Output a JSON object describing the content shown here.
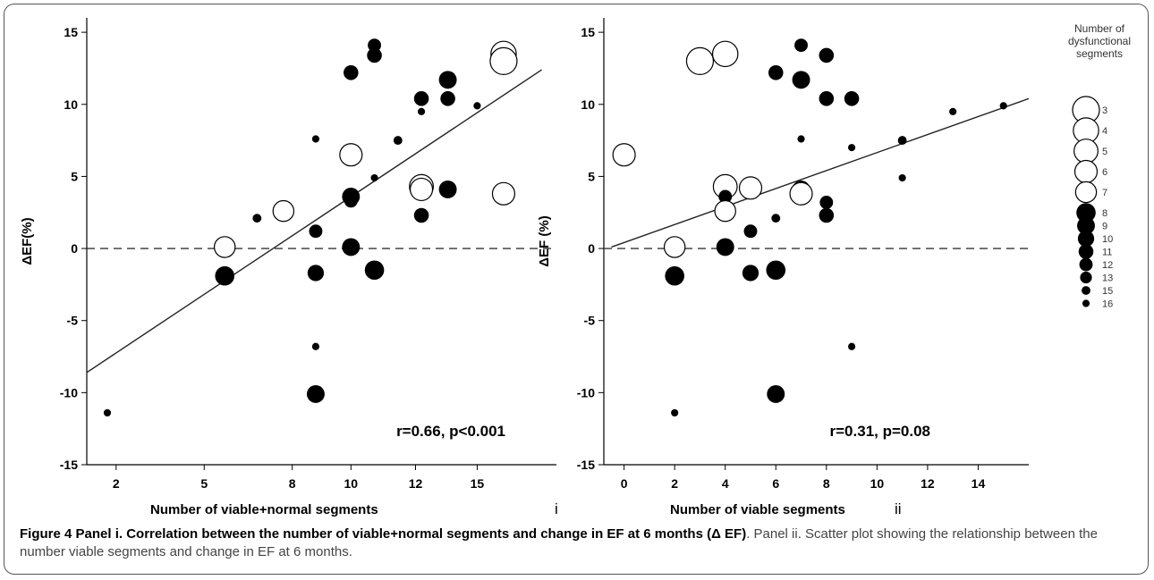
{
  "chart_data": [
    {
      "type": "scatter",
      "panel_label": "i",
      "xlabel": "Number of viable+normal segments",
      "ylabel": "ΔEF(%)",
      "annotation": "r=0.66, p<0.001",
      "xlim": [
        1,
        17
      ],
      "ylim": [
        -15,
        16
      ],
      "xtick_values": [
        2,
        4,
        6,
        8,
        10,
        12,
        14,
        16
      ],
      "xtick_labels": [
        "2",
        "5",
        "8",
        "10",
        "12",
        "15"
      ],
      "xtick_positions": [
        2,
        5,
        8,
        10,
        12.2,
        14.3
      ],
      "yticks": [
        -15,
        -10,
        -5,
        0,
        5,
        10,
        15
      ],
      "reference_line_y": 0,
      "regression": {
        "x1": 1,
        "y1": -8.6,
        "x2": 16.5,
        "y2": 12.4
      },
      "points": [
        {
          "x": 1.7,
          "y": -11.4,
          "size": 16,
          "filled": true
        },
        {
          "x": 5.7,
          "y": 0.1,
          "size": 7,
          "filled": false
        },
        {
          "x": 5.7,
          "y": -1.9,
          "size": 8,
          "filled": true
        },
        {
          "x": 6.8,
          "y": 2.1,
          "size": 15,
          "filled": true
        },
        {
          "x": 7.7,
          "y": 2.6,
          "size": 7,
          "filled": false
        },
        {
          "x": 8.8,
          "y": 7.6,
          "size": 16,
          "filled": true
        },
        {
          "x": 8.8,
          "y": 1.2,
          "size": 12,
          "filled": true
        },
        {
          "x": 8.8,
          "y": -1.7,
          "size": 10,
          "filled": true
        },
        {
          "x": 8.8,
          "y": -6.8,
          "size": 16,
          "filled": true
        },
        {
          "x": 8.8,
          "y": -10.1,
          "size": 9,
          "filled": true
        },
        {
          "x": 10.0,
          "y": 12.2,
          "size": 11,
          "filled": true
        },
        {
          "x": 10.0,
          "y": 7.0,
          "size": 16,
          "filled": true
        },
        {
          "x": 10.0,
          "y": 6.5,
          "size": 6,
          "filled": false
        },
        {
          "x": 10.0,
          "y": 3.6,
          "size": 9,
          "filled": true
        },
        {
          "x": 10.0,
          "y": 3.3,
          "size": 12,
          "filled": true
        },
        {
          "x": 10.0,
          "y": 0.1,
          "size": 9,
          "filled": true
        },
        {
          "x": 10.8,
          "y": 14.1,
          "size": 12,
          "filled": true
        },
        {
          "x": 10.8,
          "y": 13.4,
          "size": 11,
          "filled": true
        },
        {
          "x": 10.8,
          "y": 4.9,
          "size": 16,
          "filled": true
        },
        {
          "x": 10.8,
          "y": -1.5,
          "size": 8,
          "filled": true
        },
        {
          "x": 11.6,
          "y": 7.5,
          "size": 15,
          "filled": true
        },
        {
          "x": 12.4,
          "y": 10.4,
          "size": 11,
          "filled": true
        },
        {
          "x": 12.4,
          "y": 9.5,
          "size": 16,
          "filled": true
        },
        {
          "x": 12.4,
          "y": 4.3,
          "size": 5,
          "filled": false
        },
        {
          "x": 12.4,
          "y": 4.1,
          "size": 6,
          "filled": false
        },
        {
          "x": 12.4,
          "y": 2.3,
          "size": 11,
          "filled": true
        },
        {
          "x": 13.3,
          "y": 11.7,
          "size": 9,
          "filled": true
        },
        {
          "x": 13.3,
          "y": 10.4,
          "size": 11,
          "filled": true
        },
        {
          "x": 13.3,
          "y": 4.1,
          "size": 9,
          "filled": true
        },
        {
          "x": 14.3,
          "y": 9.9,
          "size": 16,
          "filled": true
        },
        {
          "x": 15.2,
          "y": 13.5,
          "size": 4,
          "filled": false
        },
        {
          "x": 15.2,
          "y": 13.0,
          "size": 3,
          "filled": false
        },
        {
          "x": 15.2,
          "y": 3.8,
          "size": 6,
          "filled": false
        }
      ]
    },
    {
      "type": "scatter",
      "panel_label": "ii",
      "xlabel": "Number of viable segments",
      "ylabel": "ΔEF (%)",
      "annotation": "r=0.31, p=0.08",
      "xlim": [
        -0.8,
        16
      ],
      "ylim": [
        -15,
        16
      ],
      "xticks": [
        0,
        2,
        4,
        6,
        8,
        10,
        12,
        14
      ],
      "yticks": [
        -15,
        -10,
        -5,
        0,
        5,
        10,
        15
      ],
      "reference_line_y": 0,
      "regression": {
        "x1": -0.5,
        "y1": 0.1,
        "x2": 16,
        "y2": 10.4
      },
      "points": [
        {
          "x": 0,
          "y": 6.5,
          "size": 6,
          "filled": false
        },
        {
          "x": 2,
          "y": 0.1,
          "size": 7,
          "filled": false
        },
        {
          "x": 2,
          "y": -1.9,
          "size": 8,
          "filled": true
        },
        {
          "x": 2,
          "y": -11.4,
          "size": 16,
          "filled": true
        },
        {
          "x": 3,
          "y": 13.0,
          "size": 3,
          "filled": false
        },
        {
          "x": 4,
          "y": 13.5,
          "size": 4,
          "filled": false
        },
        {
          "x": 4,
          "y": 4.3,
          "size": 5,
          "filled": false
        },
        {
          "x": 4,
          "y": 3.6,
          "size": 12,
          "filled": true
        },
        {
          "x": 4,
          "y": 2.6,
          "size": 7,
          "filled": false
        },
        {
          "x": 4,
          "y": 0.1,
          "size": 9,
          "filled": true
        },
        {
          "x": 5,
          "y": 4.2,
          "size": 6,
          "filled": false
        },
        {
          "x": 5,
          "y": 1.2,
          "size": 12,
          "filled": true
        },
        {
          "x": 5,
          "y": -1.7,
          "size": 10,
          "filled": true
        },
        {
          "x": 6,
          "y": 12.2,
          "size": 11,
          "filled": true
        },
        {
          "x": 6,
          "y": 2.1,
          "size": 15,
          "filled": true
        },
        {
          "x": 6,
          "y": -1.5,
          "size": 8,
          "filled": true
        },
        {
          "x": 6,
          "y": -10.1,
          "size": 9,
          "filled": true
        },
        {
          "x": 7,
          "y": 14.1,
          "size": 12,
          "filled": true
        },
        {
          "x": 7,
          "y": 11.7,
          "size": 9,
          "filled": true
        },
        {
          "x": 7,
          "y": 7.6,
          "size": 16,
          "filled": true
        },
        {
          "x": 7,
          "y": 4.1,
          "size": 9,
          "filled": true
        },
        {
          "x": 7,
          "y": 3.8,
          "size": 6,
          "filled": false
        },
        {
          "x": 8,
          "y": 13.4,
          "size": 11,
          "filled": true
        },
        {
          "x": 8,
          "y": 10.4,
          "size": 11,
          "filled": true
        },
        {
          "x": 8,
          "y": 3.2,
          "size": 12,
          "filled": true
        },
        {
          "x": 8,
          "y": 2.3,
          "size": 11,
          "filled": true
        },
        {
          "x": 9,
          "y": 10.4,
          "size": 11,
          "filled": true
        },
        {
          "x": 9,
          "y": 7.0,
          "size": 16,
          "filled": true
        },
        {
          "x": 9,
          "y": -6.8,
          "size": 16,
          "filled": true
        },
        {
          "x": 11,
          "y": 7.5,
          "size": 15,
          "filled": true
        },
        {
          "x": 11,
          "y": 4.9,
          "size": 16,
          "filled": true
        },
        {
          "x": 13,
          "y": 9.5,
          "size": 16,
          "filled": true
        },
        {
          "x": 15,
          "y": 9.9,
          "size": 16,
          "filled": true
        }
      ]
    }
  ],
  "legend": {
    "title_lines": [
      "Number of",
      "dysfunctional",
      "segments"
    ],
    "items": [
      {
        "label": "3",
        "size": 3,
        "filled": false
      },
      {
        "label": "4",
        "size": 4,
        "filled": false
      },
      {
        "label": "5",
        "size": 5,
        "filled": false
      },
      {
        "label": "6",
        "size": 6,
        "filled": false
      },
      {
        "label": "7",
        "size": 7,
        "filled": false
      },
      {
        "label": "8",
        "size": 8,
        "filled": true
      },
      {
        "label": "9",
        "size": 9,
        "filled": true
      },
      {
        "label": "10",
        "size": 10,
        "filled": true
      },
      {
        "label": "11",
        "size": 11,
        "filled": true
      },
      {
        "label": "12",
        "size": 12,
        "filled": true
      },
      {
        "label": "13",
        "size": 13,
        "filled": true
      },
      {
        "label": "15",
        "size": 15,
        "filled": true
      },
      {
        "label": "16",
        "size": 16,
        "filled": true
      }
    ]
  },
  "caption": {
    "bold": "Figure 4 Panel i. Correlation between the number of viable+normal segments and change in EF at 6 months (Δ EF)",
    "rest": ". Panel ii. Scatter plot showing the relationship between the number viable segments and change in EF at 6 months."
  }
}
